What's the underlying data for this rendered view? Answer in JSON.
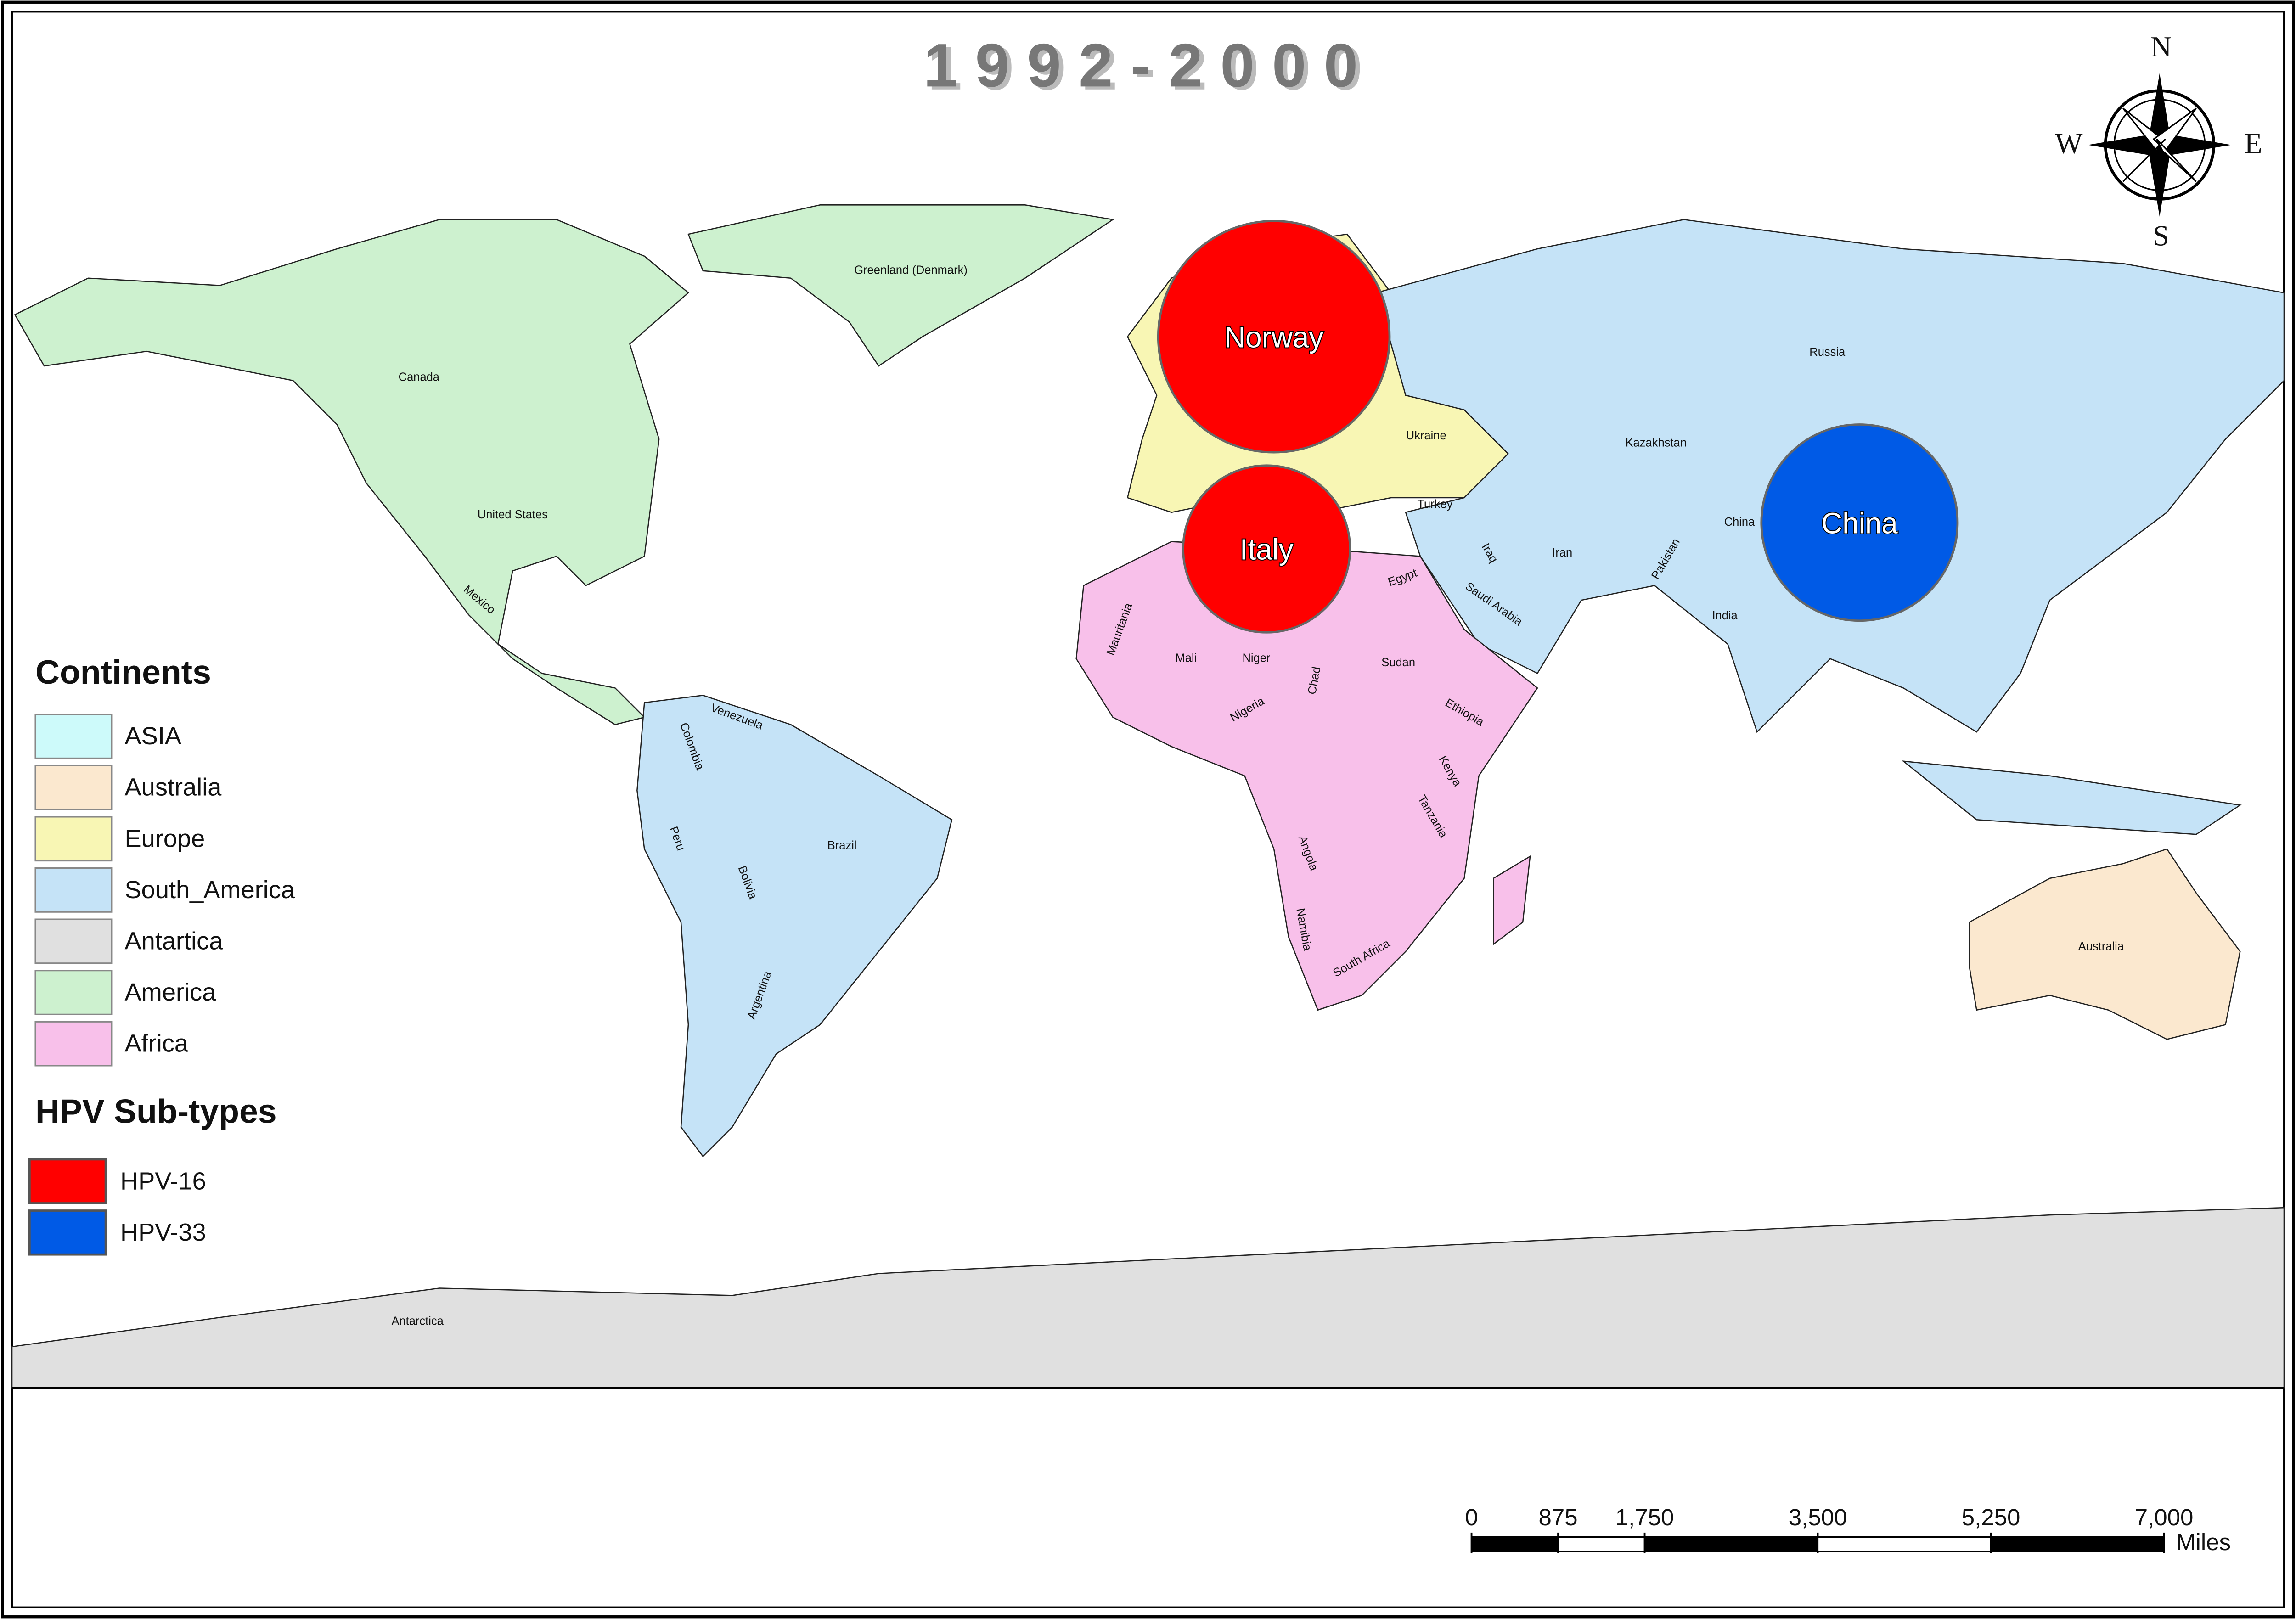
{
  "title": "1992-2000",
  "compass": {
    "n": "N",
    "e": "E",
    "s": "S",
    "w": "W"
  },
  "map_labels": [
    "Greenland (Denmark)",
    "Canada",
    "United States",
    "Mexico",
    "Venezuela",
    "Colombia",
    "Brazil",
    "Peru",
    "Bolivia",
    "Argentina",
    "Russia",
    "Kazakhstan",
    "Ukraine",
    "Turkey",
    "China",
    "Iraq",
    "Iran",
    "Pakistan",
    "Saudi Arabia",
    "India",
    "Egypt",
    "Mauritania",
    "Mali",
    "Niger",
    "Chad",
    "Sudan",
    "Nigeria",
    "Ethiopia",
    "Kenya",
    "Tanzania",
    "Angola",
    "Namibia",
    "South Africa",
    "Australia",
    "Antarctica"
  ],
  "markers": [
    {
      "label": "Norway",
      "color": "#ff0000"
    },
    {
      "label": "Italy",
      "color": "#ff0000"
    },
    {
      "label": "China",
      "color": "#005ae6"
    }
  ],
  "legend": {
    "continents": {
      "title": "Continents",
      "items": [
        {
          "label": "ASIA",
          "color": "#cdfafa"
        },
        {
          "label": "Australia",
          "color": "#fbe8cf"
        },
        {
          "label": "Europe",
          "color": "#f8f6b4"
        },
        {
          "label": "South_America",
          "color": "#c5e3f7"
        },
        {
          "label": "Antartica",
          "color": "#e0e0e0"
        },
        {
          "label": "America",
          "color": "#cdf1cf"
        },
        {
          "label": "Africa",
          "color": "#f8c0ea"
        }
      ]
    },
    "subtypes": {
      "title": "HPV Sub-types",
      "items": [
        {
          "label": "HPV-16",
          "color": "#ff0000"
        },
        {
          "label": "HPV-33",
          "color": "#005ae6"
        }
      ]
    }
  },
  "scale_bar": {
    "ticks": [
      {
        "value": 0,
        "label": "0"
      },
      {
        "value": 875,
        "label": "875"
      },
      {
        "value": 1750,
        "label": "1,750"
      },
      {
        "value": 3500,
        "label": "3,500"
      },
      {
        "value": 5250,
        "label": "5,250"
      },
      {
        "value": 7000,
        "label": "7,000"
      }
    ],
    "unit": "Miles"
  }
}
